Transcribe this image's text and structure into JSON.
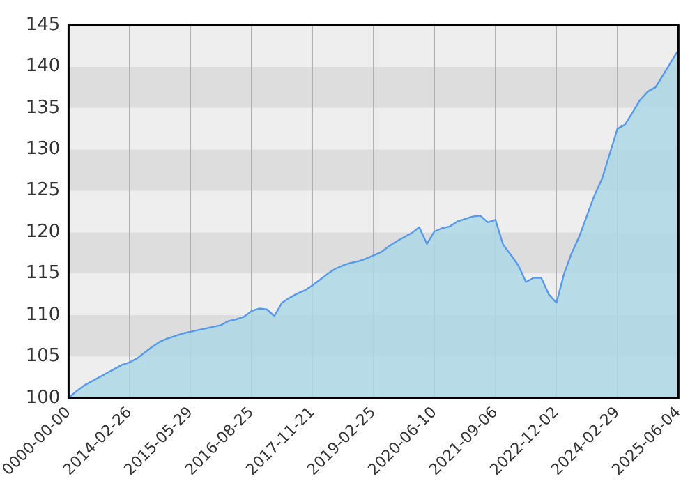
{
  "chart_data": {
    "type": "area",
    "categories": [
      "0000-00-00",
      null,
      null,
      null,
      null,
      null,
      null,
      null,
      "2014-02-26",
      null,
      null,
      null,
      null,
      null,
      null,
      null,
      "2015-05-29",
      null,
      null,
      null,
      null,
      null,
      null,
      null,
      "2016-08-25",
      null,
      null,
      null,
      null,
      null,
      null,
      null,
      "2017-11-21",
      null,
      null,
      null,
      null,
      null,
      null,
      null,
      "2019-02-25",
      null,
      null,
      null,
      null,
      null,
      null,
      null,
      "2020-06-10",
      null,
      null,
      null,
      null,
      null,
      null,
      null,
      "2021-09-06",
      null,
      null,
      null,
      null,
      null,
      null,
      null,
      "2022-12-02",
      null,
      null,
      null,
      null,
      null,
      null,
      null,
      "2024-02-29",
      null,
      null,
      null,
      null,
      null,
      null,
      null,
      "2025-06-04"
    ],
    "series": [
      {
        "color": "#5599ee",
        "values": [
          100,
          100.8,
          101.5,
          102,
          102.5,
          103,
          103.5,
          104,
          104.3,
          104.8,
          105.5,
          106.2,
          106.8,
          107.2,
          107.5,
          107.8,
          108.0,
          108.2,
          108.4,
          108.6,
          108.8,
          109.3,
          109.5,
          109.8,
          110.5,
          110.8,
          110.7,
          109.9,
          111.5,
          112.1,
          112.6,
          113.0,
          113.6,
          114.3,
          115,
          115.6,
          116,
          116.3,
          116.5,
          116.8,
          117.2,
          117.6,
          118.3,
          118.9,
          119.4,
          119.9,
          120.6,
          118.6,
          120.1,
          120.5,
          120.7,
          121.3,
          121.6,
          121.9,
          122.0,
          121.2,
          121.5,
          118.5,
          117.3,
          116,
          114,
          114.5,
          114.5,
          112.5,
          111.5,
          115,
          117.5,
          119.5,
          122,
          124.5,
          126.5,
          129.5,
          132.5,
          133,
          134.5,
          136,
          137,
          137.5,
          139,
          140.5,
          142
        ]
      }
    ],
    "ylim": [
      100,
      145
    ],
    "yticks": [
      100,
      105,
      110,
      115,
      120,
      125,
      130,
      135,
      140,
      145
    ],
    "grid": true,
    "legend": false,
    "marker": "none",
    "line_style": "solid"
  }
}
